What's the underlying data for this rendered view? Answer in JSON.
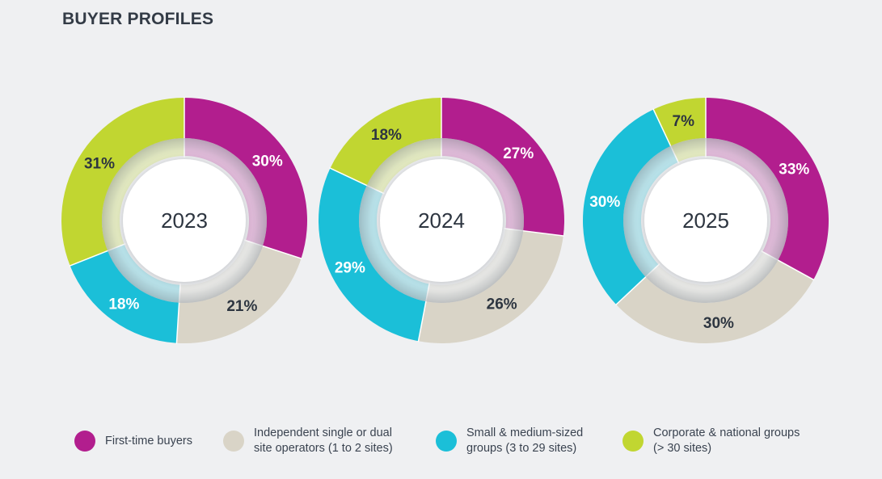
{
  "title": "BUYER PROFILES",
  "colors": {
    "first_time": "#b21e8e",
    "independent": "#d9d4c7",
    "small_medium": "#1bbfd8",
    "corporate": "#c1d631"
  },
  "legend": [
    {
      "key": "first_time",
      "label": "First-time buyers",
      "color": "#b21e8e"
    },
    {
      "key": "independent",
      "label": "Independent single or dual\nsite operators (1 to 2 sites)",
      "color": "#d9d4c7"
    },
    {
      "key": "small_medium",
      "label": "Small & medium-sized\ngroups (3 to 29 sites)",
      "color": "#1bbfd8"
    },
    {
      "key": "corporate",
      "label": "Corporate & national groups\n(> 30 sites)",
      "color": "#c1d631"
    }
  ],
  "chart_data": [
    {
      "type": "pie",
      "center_label": "2023",
      "categories": [
        "First-time buyers",
        "Independent single or dual site operators (1 to 2 sites)",
        "Small & medium-sized groups (3 to 29 sites)",
        "Corporate & national groups (> 30 sites)"
      ],
      "values": [
        30,
        21,
        18,
        31
      ],
      "labels": [
        "30%",
        "21%",
        "18%",
        "31%"
      ]
    },
    {
      "type": "pie",
      "center_label": "2024",
      "categories": [
        "First-time buyers",
        "Independent single or dual site operators (1 to 2 sites)",
        "Small & medium-sized groups (3 to 29 sites)",
        "Corporate & national groups (> 30 sites)"
      ],
      "values": [
        27,
        26,
        29,
        18
      ],
      "labels": [
        "27%",
        "26%",
        "29%",
        "18%"
      ]
    },
    {
      "type": "pie",
      "center_label": "2025",
      "categories": [
        "First-time buyers",
        "Independent single or dual site operators (1 to 2 sites)",
        "Small & medium-sized groups (3 to 29 sites)",
        "Corporate & national groups (> 30 sites)"
      ],
      "values": [
        33,
        30,
        30,
        7
      ],
      "labels": [
        "33%",
        "30%",
        "30%",
        "7%"
      ]
    }
  ]
}
